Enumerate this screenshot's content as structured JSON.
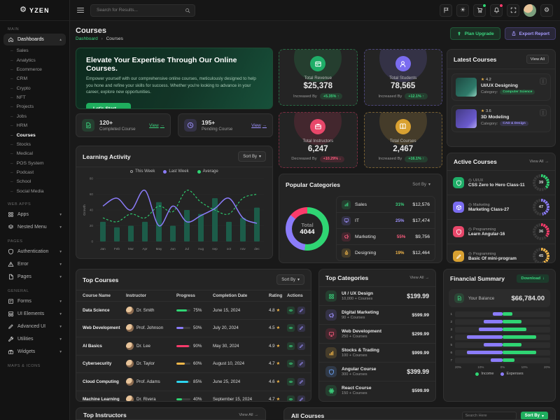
{
  "brand": {
    "name": "YZEN"
  },
  "topbar": {
    "search_placeholder": "Search for Results...",
    "icons": [
      {
        "name": "flag-icon"
      },
      {
        "name": "theme-sun-icon",
        "char": "☀"
      },
      {
        "name": "cart-icon",
        "badge": "#2fd573"
      },
      {
        "name": "notifications-bell-icon",
        "badge": "#fb3b6b"
      },
      {
        "name": "fullscreen-icon"
      },
      {
        "name": "user-avatar"
      },
      {
        "name": "settings-gear-icon",
        "char": "⚙"
      }
    ]
  },
  "sidebar": {
    "sections": [
      {
        "label": "MAIN",
        "items": [
          {
            "label": "Dashboards",
            "icon": "home-icon",
            "expanded": true,
            "active": true,
            "active_child": "Courses",
            "children": [
              "Sales",
              "Analytics",
              "Ecommerce",
              "CRM",
              "Crypto",
              "NFT",
              "Projects",
              "Jobs",
              "HRM",
              "Courses",
              "Stocks",
              "Medical",
              "POS System",
              "Podcast",
              "School",
              "Social Media"
            ]
          }
        ]
      },
      {
        "label": "WEB APPS",
        "items": [
          {
            "label": "Apps",
            "icon": "grid-icon"
          },
          {
            "label": "Nested Menu",
            "icon": "layers-icon"
          }
        ]
      },
      {
        "label": "PAGES",
        "items": [
          {
            "label": "Authentication",
            "icon": "shield-icon"
          },
          {
            "label": "Error",
            "icon": "warning-icon"
          },
          {
            "label": "Pages",
            "icon": "page-icon"
          }
        ]
      },
      {
        "label": "GENERAL",
        "items": [
          {
            "label": "Forms",
            "icon": "form-icon"
          },
          {
            "label": "UI Elements",
            "icon": "ui-icon"
          },
          {
            "label": "Advanced UI",
            "icon": "pencil-icon"
          },
          {
            "label": "Utilities",
            "icon": "tools-icon"
          },
          {
            "label": "Widgets",
            "icon": "widget-icon"
          }
        ]
      },
      {
        "label": "MAPS & ICONS",
        "items": []
      }
    ]
  },
  "page": {
    "title": "Courses",
    "breadcrumb": {
      "parent": "Dashboard",
      "separator": "›",
      "current": "Courses"
    },
    "actions": [
      {
        "label": "Plan Upgrade",
        "style": "green",
        "icon": "upgrade-icon"
      },
      {
        "label": "Export Report",
        "style": "purple",
        "icon": "export-icon"
      }
    ]
  },
  "banner": {
    "title": "Elevate Your Expertise Through Our Online Courses.",
    "body": "Empower yourself with our comprehensive online courses, meticulously designed to help you hone and refine your skills for success. Whether you're looking to advance in your career, explore new opportunities.",
    "cta": "Let's Start"
  },
  "mini_cards": [
    {
      "icon": "file-check-icon",
      "color": "green",
      "value": "120+",
      "label": "Completed Course",
      "link": "View"
    },
    {
      "icon": "clock-icon",
      "color": "purple",
      "value": "195+",
      "label": "Pending Course",
      "link": "View"
    }
  ],
  "stats": [
    {
      "icon": "revenue-card-icon",
      "color": "green",
      "label": "Total Revenue",
      "value": "$25,378",
      "trend_label": "Increased By",
      "trend": "+5.35%",
      "direction": "up"
    },
    {
      "icon": "students-icon",
      "color": "purple",
      "label": "Total Students",
      "value": "78,565",
      "trend_label": "Increased By",
      "trend": "+12.1%",
      "direction": "up"
    },
    {
      "icon": "briefcase-icon",
      "color": "red",
      "label": "Total Instructors",
      "value": "6,247",
      "trend_label": "Decreased By",
      "trend": "+10.29%",
      "direction": "down"
    },
    {
      "icon": "book-icon",
      "color": "yellow",
      "label": "Total Courses",
      "value": "2,467",
      "trend_label": "Increased By",
      "trend": "+16.1%",
      "direction": "up"
    }
  ],
  "learning_activity": {
    "title": "Learning Activity",
    "sort_label": "Sort By",
    "chart": {
      "type": "bar+line",
      "ylabel": "Growth",
      "ylim": [
        0,
        80
      ],
      "yticks": [
        0,
        20,
        40,
        60,
        80
      ],
      "categories": [
        "Jan",
        "Feb",
        "Mar",
        "Apr",
        "May",
        "Jun",
        "Jul",
        "Aug",
        "sep",
        "oct",
        "nov",
        "dec"
      ],
      "series": [
        {
          "name": "This Week",
          "type": "bar",
          "color": "#1c5c49",
          "values": [
            25,
            18,
            20,
            25,
            50,
            20,
            40,
            35,
            55,
            25,
            30,
            43
          ]
        },
        {
          "name": "Last Week",
          "type": "line",
          "color": "#8b7cfa",
          "values": [
            45,
            55,
            40,
            65,
            20,
            45,
            25,
            33,
            42,
            55,
            30,
            23
          ]
        },
        {
          "name": "Average",
          "type": "dashed-line",
          "color": "#2fd573",
          "values": [
            30,
            25,
            35,
            30,
            45,
            38,
            65,
            50,
            40,
            35,
            55,
            60
          ]
        }
      ]
    }
  },
  "popular_categories": {
    "title": "Popular Categories",
    "sort_label": "Sort By",
    "total_label": "Total",
    "total_value": "4044",
    "donut": [
      {
        "color": "#2fd573",
        "pct": 52
      },
      {
        "color": "#8b7cfa",
        "pct": 34
      },
      {
        "color": "#fb3b6b",
        "pct": 14
      }
    ],
    "rows": [
      {
        "icon": "sales-chart-icon",
        "color": "green",
        "name": "Sales",
        "pct": "31%",
        "value": "$12,576"
      },
      {
        "icon": "it-monitor-icon",
        "color": "purple",
        "name": "IT",
        "pct": "25%",
        "value": "$17,474"
      },
      {
        "icon": "marketing-megaphone-icon",
        "color": "red",
        "name": "Marketing",
        "pct": "55%",
        "value": "$9,756"
      },
      {
        "icon": "design-nib-icon",
        "color": "orange",
        "name": "Designing",
        "pct": "19%",
        "value": "$12,464"
      }
    ]
  },
  "latest_courses": {
    "title": "Latest Courses",
    "action": "View All",
    "items": [
      {
        "rating": "4.2",
        "title": "UI/UX Designing",
        "category_label": "Category:",
        "category": "Computer Science",
        "pill_color": "green",
        "thumb": "teal"
      },
      {
        "rating": "3.6",
        "title": "3D Modeling",
        "category_label": "Category:",
        "category": "CAD & Design",
        "pill_color": "purple",
        "thumb": "purple"
      }
    ]
  },
  "active_courses": {
    "title": "Active Courses",
    "action": "View All",
    "items": [
      {
        "icon": "shield-icon",
        "color": "green",
        "category": "UI/UX",
        "title": "CSS Zero to Hero Class-11",
        "progress": 39
      },
      {
        "icon": "cube-icon",
        "color": "purple",
        "category": "Marketing",
        "title": "Marketing Class-27",
        "progress": 47
      },
      {
        "icon": "angular-icon",
        "color": "red",
        "category": "Programming",
        "title": "Learn Angular-16",
        "progress": 36
      },
      {
        "icon": "pencil-icon",
        "color": "yellow",
        "category": "Programming",
        "title": "Basic Of mini-program",
        "progress": 45
      }
    ]
  },
  "top_courses": {
    "title": "Top Courses",
    "sort_label": "Sort By",
    "columns": [
      "Course Name",
      "Instructor",
      "Progress",
      "Completion Date",
      "Rating",
      "Actions"
    ],
    "rows": [
      {
        "course": "Data Science",
        "instructor": "Dr. Smith",
        "progress": 75,
        "bar_color": "green",
        "date": "June 15, 2024",
        "rating": "4.8"
      },
      {
        "course": "Web Development",
        "instructor": "Prof. Johnson",
        "progress": 50,
        "bar_color": "purple",
        "date": "July 20, 2024",
        "rating": "4.5"
      },
      {
        "course": "AI Basics",
        "instructor": "Dr. Lee",
        "progress": 90,
        "bar_color": "red",
        "date": "May 30, 2024",
        "rating": "4.9"
      },
      {
        "course": "Cybersecurity",
        "instructor": "Dr. Taylor",
        "progress": 60,
        "bar_color": "yellow",
        "date": "August 10, 2024",
        "rating": "4.7"
      },
      {
        "course": "Cloud Computing",
        "instructor": "Prof. Adams",
        "progress": 85,
        "bar_color": "cyan",
        "date": "June 25, 2024",
        "rating": "4.6"
      },
      {
        "course": "Machine Learning",
        "instructor": "Dr. Rivera",
        "progress": 40,
        "bar_color": "green",
        "date": "September 15, 2024",
        "rating": "4.7"
      }
    ]
  },
  "top_categories": {
    "title": "Top Categories",
    "action": "View All",
    "items": [
      {
        "icon": "grid-icon",
        "color": "green",
        "title": "UI / UX Design",
        "sub": "10,000 + Courses",
        "price": "$199.99",
        "big": true
      },
      {
        "icon": "marketing-megaphone-icon",
        "color": "purple",
        "title": "Digital Marketing",
        "sub": "90 + Courses",
        "price": "$599.99",
        "big": false
      },
      {
        "icon": "it-monitor-icon",
        "color": "red",
        "title": "Web Development",
        "sub": "250 + Courses",
        "price": "$299.99",
        "big": false
      },
      {
        "icon": "sales-chart-icon",
        "color": "orange",
        "title": "Stocks & Trading",
        "sub": "100 + Courses",
        "price": "$999.99",
        "big": false
      },
      {
        "icon": "angular-icon",
        "color": "blue",
        "title": "Angular Course",
        "sub": "300 + Courses",
        "price": "$399.99",
        "big": true
      },
      {
        "icon": "atom-icon",
        "color": "green",
        "title": "React Course",
        "sub": "150 + Courses",
        "price": "$599.99",
        "big": false
      }
    ]
  },
  "financial_summary": {
    "title": "Financial Summary",
    "download_label": "Download",
    "balance_label": "Your Balance",
    "balance_value": "$66,784.00",
    "chart": {
      "type": "diverging-bar",
      "xticks": [
        "20%",
        "10%",
        "0%",
        "10%",
        "20%"
      ],
      "xlim": 20,
      "legend": [
        {
          "name": "Income",
          "color": "#2fd573"
        },
        {
          "name": "Expenses",
          "color": "#8b7cfa"
        }
      ],
      "rows": [
        {
          "label": "1",
          "income": 4,
          "expenses": 4
        },
        {
          "label": "2",
          "income": 8,
          "expenses": 8
        },
        {
          "label": "3",
          "income": 10,
          "expenses": 10
        },
        {
          "label": "4",
          "income": 14,
          "expenses": 15
        },
        {
          "label": "5",
          "income": 8,
          "expenses": 8
        },
        {
          "label": "6",
          "income": 14,
          "expenses": 15
        },
        {
          "label": "7",
          "income": 5,
          "expenses": 5
        }
      ]
    }
  },
  "top_instructors": {
    "title": "Top Instructors",
    "action": "View All"
  },
  "all_courses": {
    "title": "All Courses",
    "search_placeholder": "Search Here",
    "sort_label": "Sort By"
  }
}
